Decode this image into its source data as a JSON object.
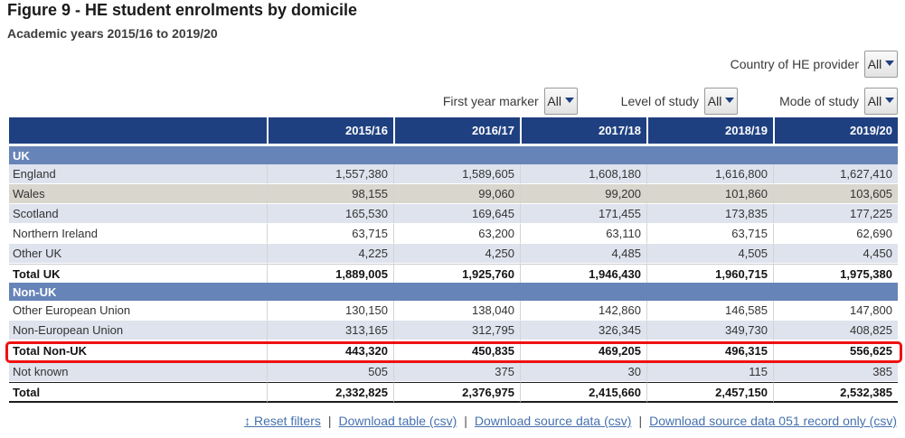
{
  "page": {
    "title": "Figure 9 - HE student enrolments by domicile",
    "subtitle": "Academic years 2015/16 to 2019/20"
  },
  "colors": {
    "header_bg": "#1f4080",
    "section_bg": "#6784b8",
    "stripe_blue": "#dfe3ee",
    "stripe_warm": "#d8d6cd",
    "highlight_red": "#ee1111",
    "link_blue": "#4671ae"
  },
  "filters": {
    "country": {
      "label": "Country of HE provider",
      "value": "All",
      "icon": "caret-down-icon"
    },
    "first_year": {
      "label": "First year marker",
      "value": "All",
      "icon": "caret-down-icon"
    },
    "level": {
      "label": "Level of study",
      "value": "All",
      "icon": "caret-down-icon"
    },
    "mode": {
      "label": "Mode of study",
      "value": "All",
      "icon": "caret-down-icon"
    }
  },
  "table": {
    "columns": [
      "2015/16",
      "2016/17",
      "2017/18",
      "2018/19",
      "2019/20"
    ],
    "rows": [
      {
        "type": "section",
        "label": "UK"
      },
      {
        "type": "data",
        "stripe": "blue",
        "label": "England",
        "values": [
          "1,557,380",
          "1,589,605",
          "1,608,180",
          "1,616,800",
          "1,627,410"
        ]
      },
      {
        "type": "data",
        "stripe": "warm",
        "label": "Wales",
        "values": [
          "98,155",
          "99,060",
          "99,200",
          "101,860",
          "103,605"
        ]
      },
      {
        "type": "data",
        "stripe": "blue",
        "label": "Scotland",
        "values": [
          "165,530",
          "169,645",
          "171,455",
          "173,835",
          "177,225"
        ]
      },
      {
        "type": "data",
        "stripe": "white",
        "label": "Northern Ireland",
        "values": [
          "63,715",
          "63,200",
          "63,110",
          "63,715",
          "62,690"
        ]
      },
      {
        "type": "data",
        "stripe": "blue",
        "label": "Other UK",
        "values": [
          "4,225",
          "4,250",
          "4,485",
          "4,505",
          "4,450"
        ]
      },
      {
        "type": "total",
        "label": "Total UK",
        "values": [
          "1,889,005",
          "1,925,760",
          "1,946,430",
          "1,960,715",
          "1,975,380"
        ]
      },
      {
        "type": "section",
        "label": "Non-UK"
      },
      {
        "type": "data",
        "stripe": "white",
        "label": "Other European Union",
        "values": [
          "130,150",
          "138,040",
          "142,860",
          "146,585",
          "147,800"
        ]
      },
      {
        "type": "data",
        "stripe": "blue",
        "label": "Non-European Union",
        "values": [
          "313,165",
          "312,795",
          "326,345",
          "349,730",
          "408,825"
        ]
      },
      {
        "type": "total",
        "highlight": true,
        "label": "Total Non-UK",
        "values": [
          "443,320",
          "450,835",
          "469,205",
          "496,315",
          "556,625"
        ]
      },
      {
        "type": "data",
        "stripe": "blue",
        "label": "Not known",
        "values": [
          "505",
          "375",
          "30",
          "115",
          "385"
        ]
      },
      {
        "type": "grand",
        "label": "Total",
        "values": [
          "2,332,825",
          "2,376,975",
          "2,415,660",
          "2,457,150",
          "2,532,385"
        ]
      }
    ]
  },
  "footer": {
    "reset_icon": "up-down-arrow-icon",
    "links": [
      "↕ Reset filters",
      "Download table (csv)",
      "Download source data (csv)",
      "Download source data 051 record only (csv)"
    ],
    "separator": "|"
  }
}
